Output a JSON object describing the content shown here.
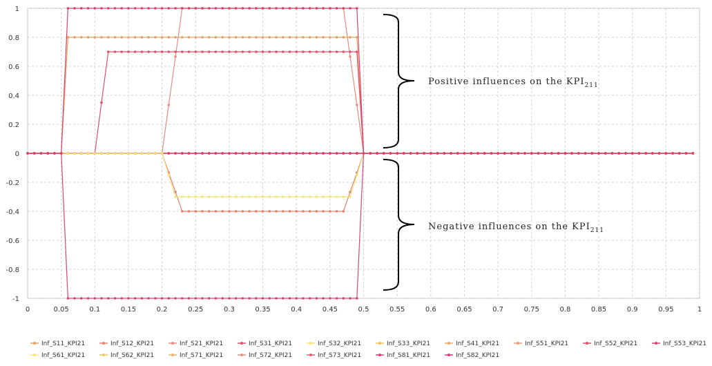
{
  "chart_data": {
    "type": "line",
    "title": "",
    "xlabel": "",
    "ylabel": "",
    "xlim": [
      0,
      1
    ],
    "ylim": [
      -1,
      1
    ],
    "x_ticks": [
      "0",
      "0.05",
      "0.1",
      "0.15",
      "0.2",
      "0.25",
      "0.3",
      "0.35",
      "0.4",
      "0.45",
      "0.5",
      "0.55",
      "0.6",
      "0.65",
      "0.7",
      "0.75",
      "0.8",
      "0.85",
      "0.9",
      "0.95",
      "1"
    ],
    "y_ticks": [
      "1",
      "0.8",
      "0.6",
      "0.4",
      "0.2",
      "0",
      "-0.2",
      "-0.4",
      "-0.6",
      "-0.8",
      "-1"
    ],
    "grid": true,
    "legend_position": "bottom",
    "annotations": {
      "positive": {
        "text": "Positive influences on the KPI",
        "subscript": "211"
      },
      "negative": {
        "text": "Negative influences on the KPI",
        "subscript": "211"
      }
    },
    "series": [
      {
        "name": "Inf_S11_KPI21",
        "color": "#E8A060",
        "shape": "trap",
        "params": {
          "a": 0.05,
          "b": 0.06,
          "c": 0.49,
          "d": 0.5,
          "h": 0.8
        }
      },
      {
        "name": "Inf_S12_KPI21",
        "color": "#E8806A",
        "shape": "trap",
        "params": {
          "a": 0.2,
          "b": 0.23,
          "c": 0.47,
          "d": 0.5,
          "h": -0.4
        }
      },
      {
        "name": "Inf_S21_KPI21",
        "color": "#EC8A80",
        "shape": "trap",
        "params": {
          "a": 0.2,
          "b": 0.23,
          "c": 0.47,
          "d": 0.5,
          "h": 1.0
        }
      },
      {
        "name": "Inf_S31_KPI21",
        "color": "#E04F6A",
        "shape": "trap",
        "params": {
          "a": 0.1,
          "b": 0.12,
          "c": 0.49,
          "d": 0.5,
          "h": 0.7
        }
      },
      {
        "name": "Inf_S32_KPI21",
        "color": "#F4E27A",
        "shape": "trap",
        "params": {
          "a": 0.2,
          "b": 0.22,
          "c": 0.48,
          "d": 0.5,
          "h": -0.3
        }
      },
      {
        "name": "Inf_S33_KPI21",
        "color": "#F2C050",
        "shape": "zero"
      },
      {
        "name": "Inf_S41_KPI21",
        "color": "#EFA868",
        "shape": "zero"
      },
      {
        "name": "Inf_S51_KPI21",
        "color": "#E99A7C",
        "shape": "zero"
      },
      {
        "name": "Inf_S52_KPI21",
        "color": "#D9536A",
        "shape": "zero"
      },
      {
        "name": "Inf_S53_KPI21",
        "color": "#D9456E",
        "shape": "trap",
        "params": {
          "a": 0.05,
          "b": 0.06,
          "c": 0.49,
          "d": 0.5,
          "h": -1.0
        }
      },
      {
        "name": "Inf_S61_KPI21",
        "color": "#F5E87C",
        "shape": "zero"
      },
      {
        "name": "Inf_S62_KPI21",
        "color": "#F2C85A",
        "shape": "zero"
      },
      {
        "name": "Inf_S71_KPI21",
        "color": "#F0B060",
        "shape": "zero"
      },
      {
        "name": "Inf_S72_KPI21",
        "color": "#E8907C",
        "shape": "zero"
      },
      {
        "name": "Inf_S73_KPI21",
        "color": "#E06070",
        "shape": "zero"
      },
      {
        "name": "Inf_S81_KPI21",
        "color": "#D8406A",
        "shape": "trap",
        "params": {
          "a": 0.05,
          "b": 0.06,
          "c": 0.49,
          "d": 0.5,
          "h": 1.0
        }
      },
      {
        "name": "Inf_S82_KPI21",
        "color": "#DA3A78",
        "shape": "zero"
      }
    ]
  }
}
